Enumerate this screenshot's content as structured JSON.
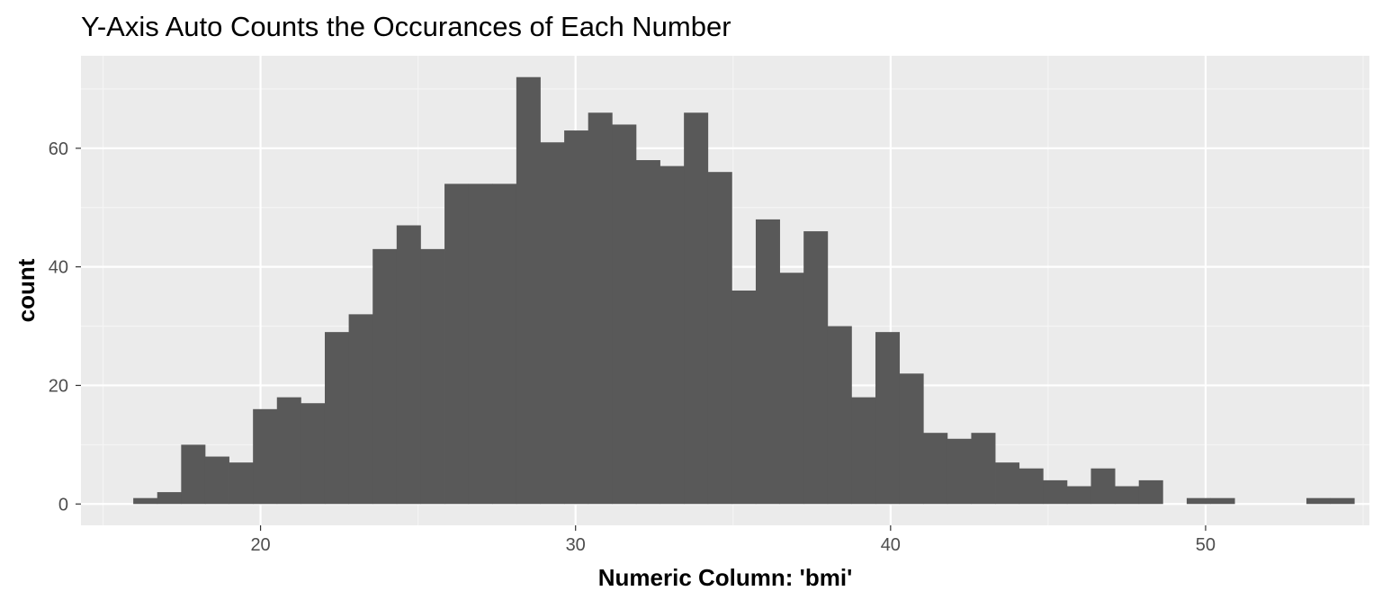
{
  "chart_data": {
    "type": "bar",
    "title": "Y-Axis Auto Counts the Occurances of Each Number",
    "xlabel": "Numeric Column: 'bmi'",
    "ylabel": "count",
    "xlim": [
      14.3,
      55.2
    ],
    "ylim": [
      -3.6,
      75.6
    ],
    "x_ticks": [
      20,
      30,
      40,
      50
    ],
    "x_tick_labels": [
      "20",
      "30",
      "40",
      "50"
    ],
    "x_minor_ticks": [
      15,
      25,
      35,
      45,
      55
    ],
    "y_ticks": [
      0,
      20,
      40,
      60
    ],
    "y_tick_labels": [
      "0",
      "20",
      "40",
      "60"
    ],
    "y_minor_ticks": [
      10,
      30,
      50,
      70
    ],
    "grid": true,
    "legend": "none",
    "bin_start": 15.96,
    "bin_width": 0.76,
    "values": [
      1,
      2,
      10,
      8,
      7,
      16,
      18,
      17,
      29,
      32,
      43,
      47,
      43,
      54,
      54,
      54,
      72,
      61,
      63,
      66,
      64,
      58,
      57,
      66,
      56,
      36,
      48,
      39,
      46,
      30,
      18,
      29,
      22,
      12,
      11,
      12,
      7,
      6,
      4,
      3,
      6,
      3,
      4,
      0,
      1,
      1,
      0,
      0,
      0,
      1,
      1
    ],
    "colors": {
      "bar_fill": "#595959",
      "panel_background": "#ebebeb",
      "grid_major": "#ffffff",
      "grid_minor": "#f5f5f5",
      "tick_text": "#4d4d4d",
      "tick_mark": "#333333",
      "title_text": "#000000"
    }
  }
}
